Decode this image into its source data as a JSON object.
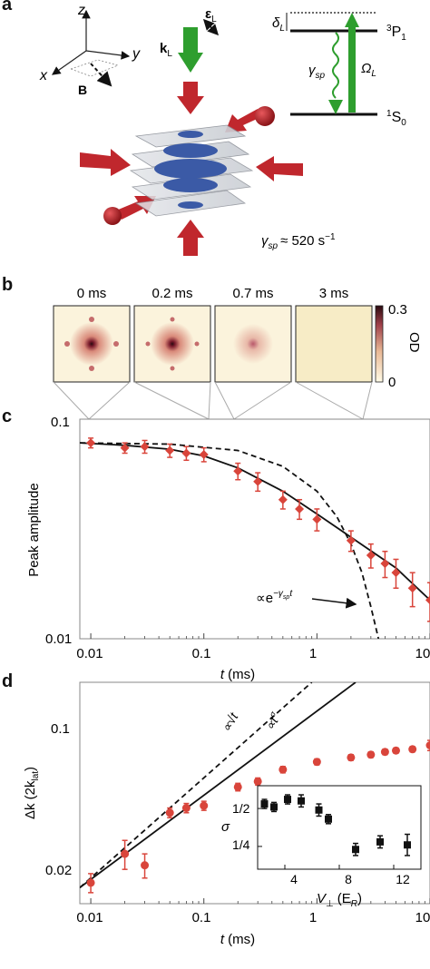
{
  "panels": {
    "a": {
      "label": "a",
      "axes": {
        "x": "x",
        "y": "y",
        "z": "z"
      },
      "field_label": "B",
      "beam_k": "k",
      "beam_k_sub": "L",
      "beam_eps": "ε",
      "beam_eps_sub": "L",
      "levels": {
        "upper": "P",
        "upper_pre": "3",
        "upper_sub": "1",
        "lower": "S",
        "lower_pre": "1",
        "lower_sub": "0"
      },
      "detuning": "δ",
      "detuning_sub": "L",
      "gamma": "γ",
      "gamma_sub": "sp",
      "rabi": "Ω",
      "rabi_sub": "L",
      "rate_text": "≈ 520 s",
      "rate_exp": "−1",
      "colors": {
        "red_beam": "#c0272d",
        "green_beam": "#2e9e2e",
        "cloud": "#3b5aa6"
      }
    },
    "b": {
      "label": "b",
      "times": [
        "0 ms",
        "0.2 ms",
        "0.7 ms",
        "3 ms"
      ],
      "colorbar": {
        "max": "0.3",
        "min": "0",
        "label": "OD"
      }
    },
    "c": {
      "label": "c",
      "ylabel": "Peak amplitude",
      "xlabel_var": "t",
      "xlabel_unit": "(ms)",
      "yticks": [
        "0.1",
        "0.01"
      ],
      "xticks": [
        "0.01",
        "0.1",
        "1",
        "10"
      ],
      "annotation": "∝e",
      "annotation_exp": "−γ",
      "annotation_exp_sub": "sp",
      "annotation_exp_t": "t"
    },
    "d": {
      "label": "d",
      "ylabel": "Δk (2k",
      "ylabel_sub": "lat",
      "ylabel_end": ")",
      "xlabel_var": "t",
      "xlabel_unit": "(ms)",
      "yticks": [
        "0.1",
        "0.02"
      ],
      "xticks": [
        "0.01",
        "0.1",
        "1",
        "10"
      ],
      "sqrt_label": "∝√t",
      "power_label": "∝t",
      "power_exp": "σ",
      "inset": {
        "ylabel": "σ",
        "yticks": [
          "1/2",
          "1/4"
        ],
        "xticks": [
          "4",
          "8",
          "12"
        ],
        "xlabel": "V",
        "xlabel_sub": "⊥",
        "xlabel_unit": "(E",
        "xlabel_unit_sub": "R",
        "xlabel_unit_end": ")"
      }
    }
  },
  "chart_data": [
    {
      "type": "scatter",
      "panel": "c",
      "xscale": "log",
      "yscale": "log",
      "xlim": [
        0.008,
        10
      ],
      "ylim": [
        0.01,
        0.1
      ],
      "series": [
        {
          "marker": "diamond",
          "color": "#d9453b",
          "x": [
            0.01,
            0.02,
            0.03,
            0.05,
            0.07,
            0.1,
            0.2,
            0.3,
            0.5,
            0.7,
            1,
            2,
            3,
            4,
            5,
            7,
            10
          ],
          "y": [
            0.078,
            0.074,
            0.075,
            0.072,
            0.07,
            0.069,
            0.058,
            0.052,
            0.043,
            0.039,
            0.035,
            0.028,
            0.024,
            0.022,
            0.02,
            0.017,
            0.015
          ],
          "yerr": [
            0.004,
            0.004,
            0.005,
            0.005,
            0.005,
            0.005,
            0.005,
            0.005,
            0.004,
            0.004,
            0.004,
            0.003,
            0.003,
            0.003,
            0.003,
            0.003,
            0.003
          ]
        },
        {
          "style": "solid",
          "x": [
            0.008,
            0.02,
            0.05,
            0.1,
            0.2,
            0.5,
            1,
            2,
            5,
            10
          ],
          "y": [
            0.078,
            0.076,
            0.073,
            0.068,
            0.06,
            0.047,
            0.037,
            0.029,
            0.021,
            0.015
          ]
        },
        {
          "style": "dashed",
          "x": [
            0.008,
            0.05,
            0.2,
            0.5,
            1,
            1.5,
            2,
            2.5,
            3,
            3.5
          ],
          "y": [
            0.078,
            0.077,
            0.072,
            0.061,
            0.047,
            0.036,
            0.027,
            0.02,
            0.014,
            0.01
          ]
        }
      ]
    },
    {
      "type": "scatter",
      "panel": "d",
      "xscale": "log",
      "yscale": "log",
      "xlim": [
        0.008,
        10
      ],
      "ylim": [
        0.018,
        0.15
      ],
      "series": [
        {
          "marker": "circle",
          "color": "#d9453b",
          "x": [
            0.01,
            0.02,
            0.03,
            0.05,
            0.07,
            0.1,
            0.2,
            0.3,
            0.5,
            1,
            2,
            3,
            4,
            5,
            7,
            10
          ],
          "y": [
            0.022,
            0.029,
            0.026,
            0.043,
            0.045,
            0.046,
            0.055,
            0.058,
            0.065,
            0.07,
            0.073,
            0.075,
            0.077,
            0.078,
            0.079,
            0.082
          ],
          "yerr": [
            0.002,
            0.004,
            0.003,
            0.002,
            0.002,
            0.002,
            0.002,
            0.002,
            0.002,
            0.002,
            0.002,
            0.002,
            0.002,
            0.002,
            0.002,
            0.004
          ]
        },
        {
          "style": "solid",
          "x": [
            0.008,
            2.2
          ],
          "y": [
            0.021,
            0.15
          ]
        },
        {
          "style": "dashed",
          "x": [
            0.008,
            0.9
          ],
          "y": [
            0.021,
            0.15
          ]
        }
      ]
    },
    {
      "type": "scatter",
      "panel": "d-inset",
      "xlim": [
        2,
        14
      ],
      "ylim": [
        0.1,
        0.65
      ],
      "series": [
        {
          "marker": "square",
          "color": "#111111",
          "x": [
            2.5,
            3.2,
            4.2,
            5.2,
            6.5,
            7.2,
            9.2,
            11.0,
            13.0
          ],
          "y": [
            0.53,
            0.51,
            0.56,
            0.55,
            0.49,
            0.43,
            0.23,
            0.28,
            0.26
          ],
          "yerr": [
            0.03,
            0.03,
            0.03,
            0.04,
            0.04,
            0.03,
            0.04,
            0.04,
            0.07
          ]
        }
      ]
    }
  ]
}
